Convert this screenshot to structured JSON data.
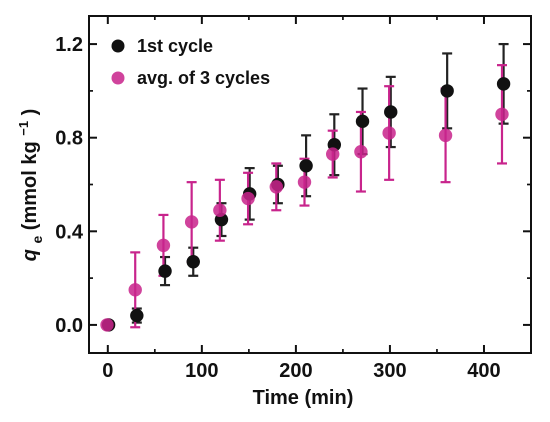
{
  "chart_data": {
    "type": "scatter",
    "xlabel": "Time (min)",
    "ylabel": {
      "symbol": "q",
      "subscript": "e",
      "unit_text": " (mmol kg",
      "superscript": "−1",
      "close": ")"
    },
    "xlim": [
      -20,
      450
    ],
    "ylim": [
      -0.12,
      1.32
    ],
    "xticks": [
      0,
      100,
      200,
      300,
      400
    ],
    "yticks": [
      0.0,
      0.4,
      0.8,
      1.2
    ],
    "x_tick_labels": [
      "0",
      "100",
      "200",
      "300",
      "400"
    ],
    "y_tick_labels": [
      "0.0",
      "0.4",
      "0.8",
      "1.2"
    ],
    "legend_position": "top-left",
    "series": [
      {
        "name": "1st cycle",
        "color": "#111111",
        "errorbar_color": "#222222",
        "points": [
          {
            "x": 0,
            "y": 0.0,
            "err": 0.0
          },
          {
            "x": 30,
            "y": 0.04,
            "err": 0.03
          },
          {
            "x": 60,
            "y": 0.23,
            "err": 0.06
          },
          {
            "x": 90,
            "y": 0.27,
            "err": 0.06
          },
          {
            "x": 120,
            "y": 0.45,
            "err": 0.07
          },
          {
            "x": 150,
            "y": 0.56,
            "err": 0.11
          },
          {
            "x": 180,
            "y": 0.6,
            "err": 0.08
          },
          {
            "x": 210,
            "y": 0.68,
            "err": 0.13
          },
          {
            "x": 240,
            "y": 0.77,
            "err": 0.13
          },
          {
            "x": 270,
            "y": 0.87,
            "err": 0.14
          },
          {
            "x": 300,
            "y": 0.91,
            "err": 0.15
          },
          {
            "x": 360,
            "y": 1.0,
            "err": 0.16
          },
          {
            "x": 420,
            "y": 1.03,
            "err": 0.17
          }
        ]
      },
      {
        "name": "avg. of 3 cycles",
        "color": "#c8248c",
        "errorbar_color": "#c8248c",
        "points": [
          {
            "x": 0,
            "y": 0.0,
            "err": 0.0
          },
          {
            "x": 30,
            "y": 0.15,
            "err": 0.16
          },
          {
            "x": 60,
            "y": 0.34,
            "err": 0.13
          },
          {
            "x": 90,
            "y": 0.44,
            "err": 0.17
          },
          {
            "x": 120,
            "y": 0.49,
            "err": 0.13
          },
          {
            "x": 150,
            "y": 0.54,
            "err": 0.11
          },
          {
            "x": 180,
            "y": 0.59,
            "err": 0.1
          },
          {
            "x": 210,
            "y": 0.61,
            "err": 0.1
          },
          {
            "x": 240,
            "y": 0.73,
            "err": 0.1
          },
          {
            "x": 270,
            "y": 0.74,
            "err": 0.17
          },
          {
            "x": 300,
            "y": 0.82,
            "err": 0.2
          },
          {
            "x": 360,
            "y": 0.81,
            "err": 0.2
          },
          {
            "x": 420,
            "y": 0.9,
            "err": 0.21
          }
        ]
      }
    ]
  }
}
